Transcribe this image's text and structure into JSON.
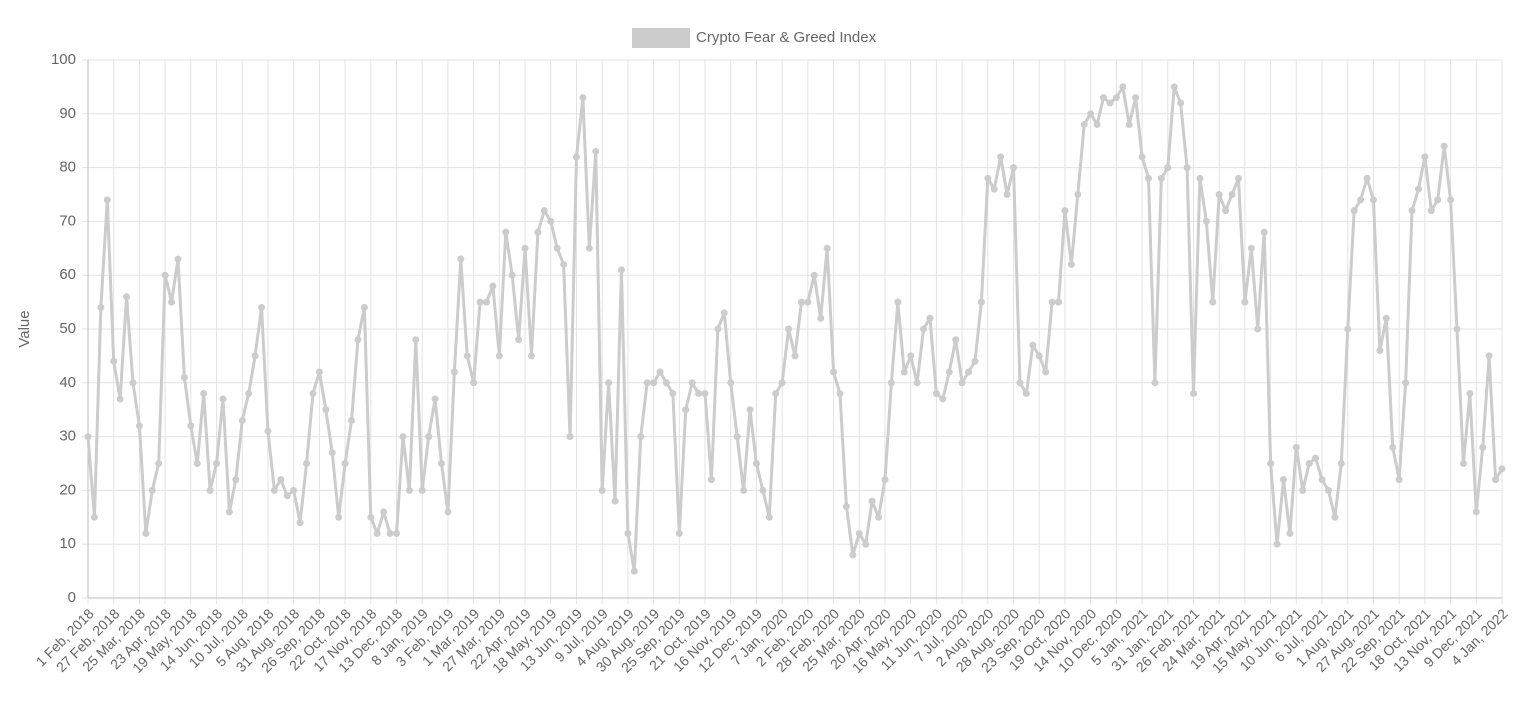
{
  "chart_data": {
    "type": "line",
    "y_label": "Value",
    "grid": true,
    "legend": "top",
    "ylim": [
      0,
      100
    ],
    "yticks": [
      0,
      10,
      20,
      30,
      40,
      50,
      60,
      70,
      80,
      90,
      100
    ],
    "categories": [
      "1 Feb, 2018",
      null,
      null,
      null,
      "27 Feb, 2018",
      null,
      null,
      null,
      "25 Mar, 2018",
      null,
      null,
      null,
      "23 Apr, 2018",
      null,
      null,
      null,
      "19 May, 2018",
      null,
      null,
      null,
      "14 Jun, 2018",
      null,
      null,
      null,
      "10 Jul, 2018",
      null,
      null,
      null,
      "5 Aug, 2018",
      null,
      null,
      null,
      "31 Aug, 2018",
      null,
      null,
      null,
      "26 Sep, 2018",
      null,
      null,
      null,
      "22 Oct, 2018",
      null,
      null,
      null,
      "17 Nov, 2018",
      null,
      null,
      null,
      "13 Dec, 2018",
      null,
      null,
      null,
      "8 Jan, 2019",
      null,
      null,
      null,
      "3 Feb, 2019",
      null,
      null,
      null,
      "1 Mar, 2019",
      null,
      null,
      null,
      "27 Mar, 2019",
      null,
      null,
      null,
      "22 Apr, 2019",
      null,
      null,
      null,
      "18 May, 2019",
      null,
      null,
      null,
      "13 Jun, 2019",
      null,
      null,
      null,
      "9 Jul, 2019",
      null,
      null,
      null,
      "4 Aug, 2019",
      null,
      null,
      null,
      "30 Aug, 2019",
      null,
      null,
      null,
      "25 Sep, 2019",
      null,
      null,
      null,
      "21 Oct, 2019",
      null,
      null,
      null,
      "16 Nov, 2019",
      null,
      null,
      null,
      "12 Dec, 2019",
      null,
      null,
      null,
      "7 Jan, 2020",
      null,
      null,
      null,
      "2 Feb, 2020",
      null,
      null,
      null,
      "28 Feb, 2020",
      null,
      null,
      null,
      "25 Mar, 2020",
      null,
      null,
      null,
      "20 Apr, 2020",
      null,
      null,
      null,
      "16 May, 2020",
      null,
      null,
      null,
      "11 Jun, 2020",
      null,
      null,
      null,
      "7 Jul, 2020",
      null,
      null,
      null,
      "2 Aug, 2020",
      null,
      null,
      null,
      "28 Aug, 2020",
      null,
      null,
      null,
      "23 Sep, 2020",
      null,
      null,
      null,
      "19 Oct, 2020",
      null,
      null,
      null,
      "14 Nov, 2020",
      null,
      null,
      null,
      "10 Dec, 2020",
      null,
      null,
      null,
      "5 Jan, 2021",
      null,
      null,
      null,
      "31 Jan, 2021",
      null,
      null,
      null,
      "26 Feb, 2021",
      null,
      null,
      null,
      "24 Mar, 2021",
      null,
      null,
      null,
      "19 Apr, 2021",
      null,
      null,
      null,
      "15 May, 2021",
      null,
      null,
      null,
      "10 Jun, 2021",
      null,
      null,
      null,
      "6 Jul, 2021",
      null,
      null,
      null,
      "1 Aug, 2021",
      null,
      null,
      null,
      "27 Aug, 2021",
      null,
      null,
      null,
      "22 Sep, 2021",
      null,
      null,
      null,
      "18 Oct, 2021",
      null,
      null,
      null,
      "13 Nov, 2021",
      null,
      null,
      null,
      "9 Dec, 2021",
      null,
      null,
      null,
      "4 Jan, 2022"
    ],
    "series": [
      {
        "name": "Crypto Fear & Greed Index",
        "color": "#cccccc",
        "values": [
          30,
          15,
          54,
          74,
          44,
          37,
          56,
          40,
          32,
          12,
          20,
          25,
          60,
          55,
          63,
          41,
          32,
          25,
          38,
          20,
          25,
          37,
          16,
          22,
          33,
          38,
          45,
          54,
          31,
          20,
          22,
          19,
          20,
          14,
          25,
          38,
          42,
          35,
          27,
          15,
          25,
          33,
          48,
          54,
          15,
          12,
          16,
          12,
          12,
          30,
          20,
          48,
          20,
          30,
          37,
          25,
          16,
          42,
          63,
          45,
          40,
          55,
          55,
          58,
          45,
          68,
          60,
          48,
          65,
          45,
          68,
          72,
          70,
          65,
          62,
          30,
          82,
          93,
          65,
          83,
          20,
          40,
          18,
          61,
          12,
          5,
          30,
          40,
          40,
          42,
          40,
          38,
          12,
          35,
          40,
          38,
          38,
          22,
          50,
          53,
          40,
          30,
          20,
          35,
          25,
          20,
          15,
          38,
          40,
          50,
          45,
          55,
          55,
          60,
          52,
          65,
          42,
          38,
          17,
          8,
          12,
          10,
          18,
          15,
          22,
          40,
          55,
          42,
          45,
          40,
          50,
          52,
          38,
          37,
          42,
          48,
          40,
          42,
          44,
          55,
          78,
          76,
          82,
          75,
          80,
          40,
          38,
          47,
          45,
          42,
          55,
          55,
          72,
          62,
          75,
          88,
          90,
          88,
          93,
          92,
          93,
          95,
          88,
          93,
          82,
          78,
          40,
          78,
          80,
          95,
          92,
          80,
          38,
          78,
          70,
          55,
          75,
          72,
          75,
          78,
          55,
          65,
          50,
          68,
          25,
          10,
          22,
          12,
          28,
          20,
          25,
          26,
          22,
          20,
          15,
          25,
          50,
          72,
          74,
          78,
          74,
          46,
          52,
          28,
          22,
          40,
          72,
          76,
          82,
          72,
          74,
          84,
          74,
          50,
          25,
          38,
          16,
          28,
          45,
          22,
          24
        ]
      }
    ]
  }
}
